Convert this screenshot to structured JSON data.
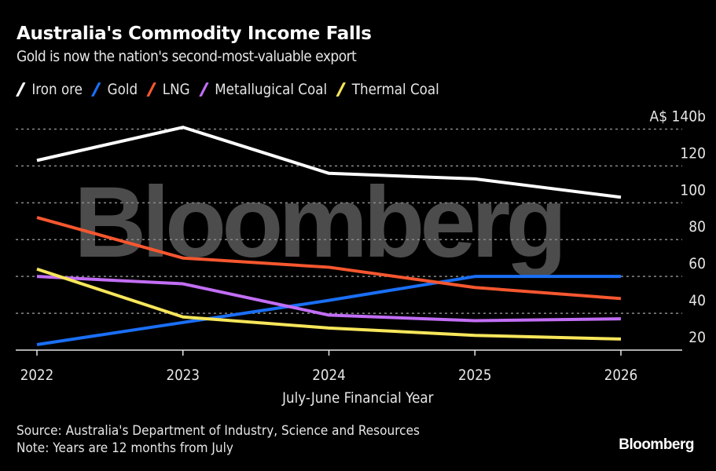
{
  "title": "Australia's Commodity Income Falls",
  "subtitle": "Gold is now the nation's second-most-valuable export",
  "legend": [
    {
      "label": "Iron ore",
      "color": "#ffffff"
    },
    {
      "label": "Gold",
      "color": "#1a6ff5"
    },
    {
      "label": "LNG",
      "color": "#f6572f"
    },
    {
      "label": "Metallugical Coal",
      "color": "#c26ef5"
    },
    {
      "label": "Thermal Coal",
      "color": "#f7e65a"
    }
  ],
  "watermark": "Bloomberg",
  "footer": {
    "source": "Source: Australia's Department of Industry, Science and Resources",
    "note": "Note: Years are 12 months from July",
    "logo": "Bloomberg"
  },
  "chart_data": {
    "type": "line",
    "title": "Australia's Commodity Income Falls",
    "subtitle": "Gold is now the nation's second-most-valuable export",
    "xlabel": "July-June Financial Year",
    "ylabel": "A$ billions",
    "x": [
      "2022",
      "2023",
      "2024",
      "2025",
      "2026"
    ],
    "ylim": [
      20,
      140
    ],
    "yticks": [
      20,
      40,
      60,
      80,
      100,
      120,
      140
    ],
    "ytick_labels": [
      "20",
      "40",
      "60",
      "80",
      "100",
      "120",
      "A$ 140b"
    ],
    "yaxis_position": "right",
    "grid": true,
    "legend_position": "top-left",
    "series": [
      {
        "name": "Iron ore",
        "color": "#ffffff",
        "values": [
          123,
          141,
          116,
          113,
          103
        ]
      },
      {
        "name": "Gold",
        "color": "#1a6ff5",
        "values": [
          23,
          35,
          47,
          60,
          60
        ]
      },
      {
        "name": "LNG",
        "color": "#f6572f",
        "values": [
          92,
          70,
          65,
          54,
          48
        ]
      },
      {
        "name": "Metallugical Coal",
        "color": "#c26ef5",
        "values": [
          60,
          56,
          39,
          36,
          37
        ]
      },
      {
        "name": "Thermal Coal",
        "color": "#f7e65a",
        "values": [
          64,
          38,
          32,
          28,
          26
        ]
      }
    ]
  }
}
